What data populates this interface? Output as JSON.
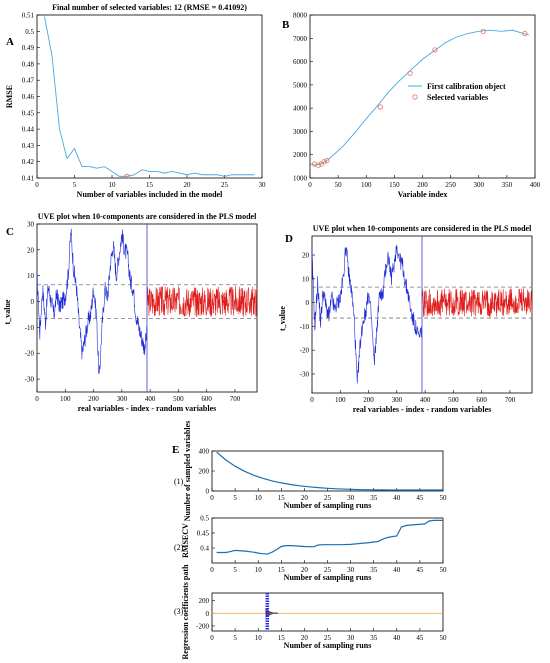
{
  "figure": {
    "panel_letters": [
      "A",
      "B",
      "C",
      "D",
      "E"
    ],
    "subpanel_labels": [
      "(1)",
      "(2)",
      "(3)"
    ]
  },
  "chart_data": [
    {
      "id": "A",
      "type": "line",
      "title": "Final number of selected variables: 12  (RMSE = 0.41092)",
      "xlabel": "Number of variables included in the model",
      "ylabel": "RMSE",
      "xlim": [
        0,
        30
      ],
      "ylim": [
        0.41,
        0.51
      ],
      "xticks": [
        0,
        5,
        10,
        15,
        20,
        25,
        30
      ],
      "yticks": [
        0.41,
        0.42,
        0.43,
        0.44,
        0.45,
        0.46,
        0.47,
        0.48,
        0.49,
        0.5,
        0.51
      ],
      "grid": false,
      "color": "#4aa8e0",
      "series": [
        {
          "x": [
            1,
            2,
            3,
            4,
            5,
            6,
            7,
            8,
            9,
            10,
            11,
            12,
            13,
            14,
            15,
            16,
            17,
            18,
            19,
            20,
            21,
            22,
            23,
            24,
            25,
            26,
            27,
            28,
            29
          ],
          "y": [
            0.509,
            0.485,
            0.44,
            0.422,
            0.428,
            0.417,
            0.417,
            0.416,
            0.417,
            0.414,
            0.411,
            0.411,
            0.412,
            0.415,
            0.414,
            0.414,
            0.413,
            0.414,
            0.413,
            0.412,
            0.413,
            0.412,
            0.412,
            0.412,
            0.411,
            0.412,
            0.412,
            0.412,
            0.412
          ]
        }
      ],
      "marker": {
        "x": 12,
        "y": 0.411,
        "color": "#e8735a"
      }
    },
    {
      "id": "B",
      "type": "line",
      "xlabel": "Variable index",
      "xlim": [
        0,
        400
      ],
      "ylim": [
        1000,
        8000
      ],
      "xticks": [
        0,
        50,
        100,
        150,
        200,
        250,
        300,
        350,
        400
      ],
      "yticks": [
        1000,
        2000,
        3000,
        4000,
        5000,
        6000,
        7000,
        8000
      ],
      "grid": false,
      "legend": [
        "First calibration object",
        "Selected variables"
      ],
      "legend_position": "right",
      "series": [
        {
          "name": "First calibration object",
          "color": "#4aa8e0",
          "x": [
            1,
            10,
            20,
            30,
            40,
            60,
            80,
            100,
            120,
            140,
            160,
            180,
            200,
            220,
            240,
            260,
            280,
            300,
            320,
            340,
            360,
            380,
            389
          ],
          "y": [
            1600,
            1550,
            1620,
            1750,
            1950,
            2400,
            2950,
            3550,
            4100,
            4700,
            5200,
            5650,
            6100,
            6450,
            6800,
            7050,
            7200,
            7300,
            7350,
            7300,
            7350,
            7200,
            7150
          ]
        },
        {
          "name": "Selected variables",
          "color": "#e8735a",
          "x": [
            8,
            15,
            20,
            25,
            30,
            125,
            178,
            222,
            308,
            382
          ],
          "y": [
            1600,
            1550,
            1600,
            1700,
            1750,
            4050,
            5500,
            6500,
            7300,
            7200
          ]
        }
      ]
    },
    {
      "id": "C",
      "type": "line",
      "title": "UVE plot when 10-components are considered in the PLS model",
      "xlabel": "real variables - index - random variables",
      "ylabel": "t_value",
      "xlim": [
        0,
        778
      ],
      "ylim": [
        -35,
        30
      ],
      "xticks": [
        0,
        100,
        200,
        300,
        400,
        500,
        600,
        700
      ],
      "yticks": [
        -30,
        -20,
        -10,
        0,
        10,
        20,
        30
      ],
      "cutoff": [
        6.5,
        -6.5
      ],
      "split": 389,
      "real_color": "#1f2bd6",
      "random_color": "#e01b1b",
      "real_keypoints": {
        "x": [
          0,
          10,
          20,
          30,
          40,
          50,
          60,
          70,
          80,
          90,
          100,
          110,
          120,
          130,
          140,
          150,
          160,
          170,
          180,
          190,
          200,
          210,
          220,
          230,
          240,
          250,
          260,
          270,
          280,
          290,
          300,
          310,
          320,
          330,
          340,
          350,
          360,
          370,
          380,
          389
        ],
        "y": [
          10,
          -12,
          5,
          -8,
          6,
          0,
          -5,
          3,
          -2,
          0,
          2,
          10,
          27,
          12,
          5,
          -10,
          -20,
          -14,
          -8,
          -5,
          5,
          -5,
          -30,
          -10,
          5,
          2,
          15,
          22,
          10,
          18,
          26,
          20,
          18,
          8,
          5,
          -5,
          -10,
          -14,
          -18,
          -12
        ]
      }
    },
    {
      "id": "D",
      "type": "line",
      "title": "UVE plot when 10-components are considered in the PLS model",
      "xlabel": "real variables - index - random variables",
      "ylabel": "t_value",
      "xlim": [
        0,
        778
      ],
      "ylim": [
        -38,
        28
      ],
      "xticks": [
        0,
        100,
        200,
        300,
        400,
        500,
        600,
        700
      ],
      "yticks": [
        -30,
        -20,
        -10,
        0,
        10,
        20
      ],
      "cutoff": [
        6.5,
        -6.5
      ],
      "split": 389,
      "real_color": "#1f2bd6",
      "random_color": "#e01b1b",
      "real_keypoints": {
        "x": [
          0,
          10,
          20,
          30,
          40,
          50,
          60,
          70,
          80,
          90,
          100,
          110,
          120,
          130,
          140,
          150,
          160,
          170,
          180,
          190,
          200,
          210,
          220,
          230,
          240,
          250,
          260,
          270,
          280,
          290,
          300,
          310,
          320,
          330,
          340,
          350,
          360,
          370,
          380,
          389
        ],
        "y": [
          20,
          -10,
          8,
          -8,
          5,
          -2,
          -6,
          2,
          -3,
          0,
          2,
          10,
          24,
          12,
          5,
          -8,
          -35,
          -18,
          -8,
          -4,
          4,
          -6,
          -26,
          -10,
          5,
          2,
          14,
          20,
          10,
          16,
          24,
          18,
          16,
          8,
          4,
          -4,
          -8,
          -12,
          -15,
          -10
        ]
      }
    },
    {
      "id": "E1",
      "type": "line",
      "xlabel": "Number of sampling runs",
      "ylabel": "Number of sampled variables",
      "xlim": [
        0,
        50
      ],
      "ylim": [
        0,
        400
      ],
      "xticks": [
        0,
        5,
        10,
        15,
        20,
        25,
        30,
        35,
        40,
        45,
        50
      ],
      "yticks": [
        0,
        200,
        400
      ],
      "color": "#1a6fb5",
      "series": [
        {
          "x": [
            1,
            3,
            5,
            7,
            9,
            11,
            13,
            15,
            17,
            19,
            21,
            23,
            25,
            27,
            29,
            31,
            33,
            35,
            37,
            39,
            41,
            43,
            45,
            47,
            50
          ],
          "y": [
            389,
            310,
            248,
            198,
            158,
            127,
            101,
            81,
            65,
            52,
            42,
            34,
            27,
            22,
            18,
            15,
            13,
            12,
            11,
            10,
            10,
            10,
            10,
            10,
            10
          ]
        }
      ]
    },
    {
      "id": "E2",
      "type": "line",
      "xlabel": "Number of sampling runs",
      "ylabel": "RMSECV",
      "xlim": [
        0,
        50
      ],
      "ylim": [
        0.35,
        0.5
      ],
      "xticks": [
        0,
        5,
        10,
        15,
        20,
        25,
        30,
        35,
        40,
        45,
        50
      ],
      "yticks": [
        0.4,
        0.45,
        0.5
      ],
      "color": "#1a6fb5",
      "series": [
        {
          "x": [
            1,
            3,
            4,
            5,
            7,
            9,
            10,
            11,
            12,
            13,
            14,
            15,
            16,
            17,
            18,
            20,
            22,
            23,
            24,
            26,
            28,
            30,
            32,
            34,
            35,
            36,
            37,
            38,
            39,
            40,
            41,
            42,
            44,
            46,
            47,
            48,
            50
          ],
          "y": [
            0.385,
            0.385,
            0.388,
            0.392,
            0.39,
            0.386,
            0.383,
            0.381,
            0.38,
            0.386,
            0.395,
            0.405,
            0.408,
            0.408,
            0.407,
            0.405,
            0.404,
            0.41,
            0.411,
            0.411,
            0.411,
            0.412,
            0.415,
            0.418,
            0.42,
            0.422,
            0.43,
            0.435,
            0.438,
            0.44,
            0.47,
            0.475,
            0.478,
            0.48,
            0.49,
            0.492,
            0.492
          ]
        }
      ]
    },
    {
      "id": "E3",
      "type": "line",
      "xlabel": "Number of sampling runs",
      "ylabel": "Regression coefficients path",
      "xlim": [
        0,
        50
      ],
      "ylim": [
        -280,
        320
      ],
      "xticks": [
        0,
        5,
        10,
        15,
        20,
        25,
        30,
        35,
        40,
        45,
        50
      ],
      "yticks": [
        -200,
        0,
        200
      ],
      "vline_x": 12,
      "baseline_color": "#e8a23a"
    }
  ]
}
